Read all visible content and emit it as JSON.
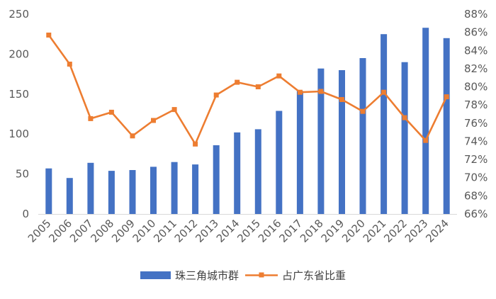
{
  "chart_data": {
    "type": "bar+line",
    "title": "",
    "categories": [
      "2005",
      "2006",
      "2007",
      "2008",
      "2009",
      "2010",
      "2011",
      "2012",
      "2013",
      "2014",
      "2015",
      "2016",
      "2017",
      "2018",
      "2019",
      "2020",
      "2021",
      "2022",
      "2023",
      "2024"
    ],
    "series": [
      {
        "name": "珠三角城市群",
        "type": "bar",
        "axis": "left",
        "color": "#4472C4",
        "values": [
          57,
          45,
          64,
          54,
          55,
          59,
          65,
          62,
          86,
          102,
          106,
          129,
          154,
          182,
          180,
          195,
          225,
          190,
          233,
          220
        ]
      },
      {
        "name": "占广东省比重",
        "type": "line",
        "axis": "right",
        "color": "#ED7D31",
        "values": [
          85.7,
          82.5,
          76.5,
          77.2,
          74.6,
          76.3,
          77.5,
          73.7,
          79.1,
          80.5,
          80.0,
          81.2,
          79.4,
          79.5,
          78.6,
          77.3,
          79.4,
          76.6,
          74.1,
          78.9
        ]
      }
    ],
    "y_left": {
      "min": 0,
      "max": 250,
      "ticks": [
        "0",
        "50",
        "100",
        "150",
        "200",
        "250"
      ]
    },
    "y_right": {
      "min": 66,
      "max": 88,
      "ticks": [
        "66%",
        "68%",
        "70%",
        "72%",
        "74%",
        "76%",
        "78%",
        "80%",
        "82%",
        "84%",
        "86%",
        "88%"
      ]
    },
    "grid": false,
    "legend_position": "bottom"
  }
}
